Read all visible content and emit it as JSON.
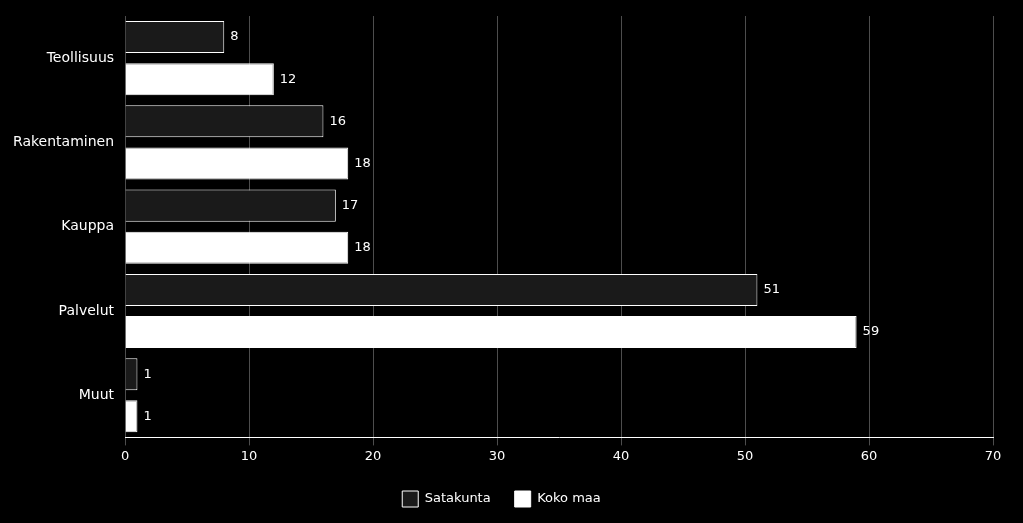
{
  "chart_data": {
    "type": "bar",
    "orientation": "horizontal",
    "categories": [
      "Muut",
      "Palvelut",
      "Kauppa",
      "Rakentaminen",
      "Teollisuus"
    ],
    "series": [
      {
        "name": "Satakunta",
        "color": "#1a1a1a",
        "values": [
          1,
          51,
          17,
          16,
          8
        ]
      },
      {
        "name": "Koko maa",
        "color": "#ffffff",
        "values": [
          1,
          59,
          18,
          18,
          12
        ]
      }
    ],
    "xlim": [
      0,
      70
    ],
    "xticks": [
      0,
      10,
      20,
      30,
      40,
      50,
      60,
      70
    ],
    "grid": true,
    "legend": "bottom",
    "data_labels": true
  }
}
